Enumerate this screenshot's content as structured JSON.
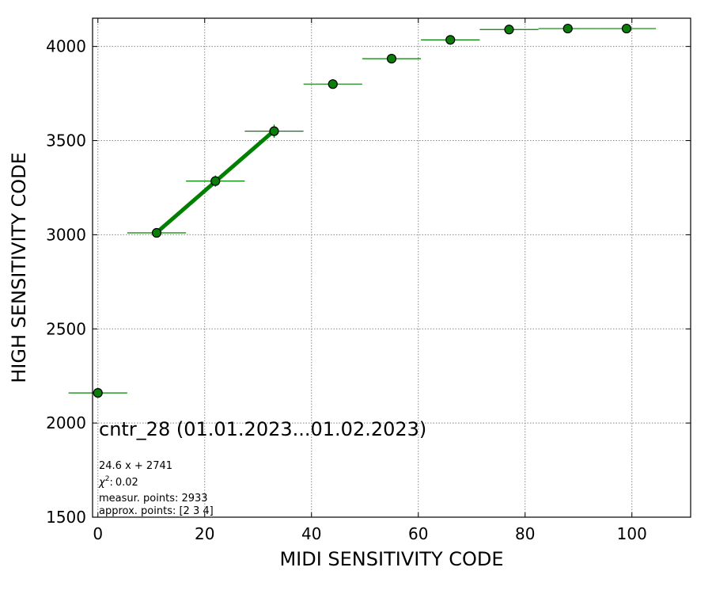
{
  "chart_data": {
    "type": "scatter",
    "xlabel": "MIDI SENSITIVITY CODE",
    "ylabel": "HIGH SENSITIVITY CODE",
    "xlim": [
      -1,
      111
    ],
    "ylim": [
      1500,
      4150
    ],
    "x_ticks": [
      0,
      20,
      40,
      60,
      80,
      100
    ],
    "y_ticks": [
      1500,
      2000,
      2500,
      3000,
      3500,
      4000
    ],
    "grid": true,
    "colors": {
      "points": "#0a7d0a",
      "errorbars": "#008000",
      "fit": "#008000"
    },
    "series": [
      {
        "x": [
          0,
          11,
          22,
          33,
          44,
          55,
          66,
          77,
          88,
          99
        ],
        "y": [
          2160,
          3010,
          3285,
          3550,
          3800,
          3935,
          4035,
          4090,
          4095,
          4095
        ],
        "xerr": [
          5.5,
          5.5,
          5.5,
          5.5,
          5.5,
          5.5,
          5.5,
          5.5,
          5.5,
          5.5
        ],
        "yerr": [
          8,
          25,
          30,
          35,
          25,
          20,
          15,
          10,
          8,
          8
        ]
      }
    ],
    "fit_line": {
      "x": [
        11,
        33
      ],
      "slope": 24.6,
      "intercept": 2741
    },
    "annotations": {
      "title": "cntr_28 (01.01.2023...01.02.2023)",
      "fit": "24.6 x + 2741",
      "chi2": "0.02",
      "chi2_symbol": "χ",
      "chi2_power": "2",
      "measur": "measur. points: 2933",
      "approx": "approx. points: [2 3 4]"
    }
  }
}
